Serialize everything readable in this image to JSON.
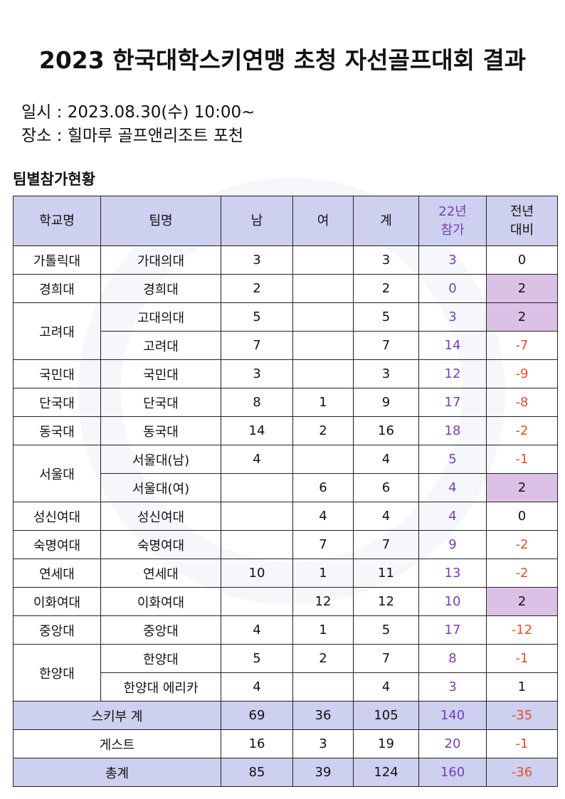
{
  "header": {
    "title": "2023 한국대학스키연맹 초청 자선골프대회 결과",
    "date": "일시 : 2023.08.30(수) 10:00~",
    "place": "장소 : 힐마루 골프앤리조트 포천"
  },
  "section": "팀별참가현황",
  "table": {
    "columns": [
      [
        "학교명"
      ],
      [
        "팀명"
      ],
      [
        "남"
      ],
      [
        "여"
      ],
      [
        "계"
      ],
      [
        "22년",
        "참가"
      ],
      [
        "전년",
        "대비"
      ]
    ],
    "schools": [
      {
        "name": "가톨릭대",
        "teams": [
          {
            "name": "가대의대",
            "male": 3,
            "female": null,
            "total": 3,
            "prev": 3,
            "diff": 0,
            "highlight": false
          }
        ]
      },
      {
        "name": "경희대",
        "teams": [
          {
            "name": "경희대",
            "male": 2,
            "female": null,
            "total": 2,
            "prev": 0,
            "diff": 2,
            "highlight": true
          }
        ]
      },
      {
        "name": "고려대",
        "teams": [
          {
            "name": "고대의대",
            "male": 5,
            "female": null,
            "total": 5,
            "prev": 3,
            "diff": 2,
            "highlight": true
          },
          {
            "name": "고려대",
            "male": 7,
            "female": null,
            "total": 7,
            "prev": 14,
            "diff": -7,
            "highlight": false
          }
        ]
      },
      {
        "name": "국민대",
        "teams": [
          {
            "name": "국민대",
            "male": 3,
            "female": null,
            "total": 3,
            "prev": 12,
            "diff": -9,
            "highlight": false
          }
        ]
      },
      {
        "name": "단국대",
        "teams": [
          {
            "name": "단국대",
            "male": 8,
            "female": 1,
            "total": 9,
            "prev": 17,
            "diff": -8,
            "highlight": false
          }
        ]
      },
      {
        "name": "동국대",
        "teams": [
          {
            "name": "동국대",
            "male": 14,
            "female": 2,
            "total": 16,
            "prev": 18,
            "diff": -2,
            "highlight": false
          }
        ]
      },
      {
        "name": "서울대",
        "teams": [
          {
            "name": "서울대(남)",
            "male": 4,
            "female": null,
            "total": 4,
            "prev": 5,
            "diff": -1,
            "highlight": false
          },
          {
            "name": "서울대(여)",
            "male": null,
            "female": 6,
            "total": 6,
            "prev": 4,
            "diff": 2,
            "highlight": true
          }
        ]
      },
      {
        "name": "성신여대",
        "teams": [
          {
            "name": "성신여대",
            "male": null,
            "female": 4,
            "total": 4,
            "prev": 4,
            "diff": 0,
            "highlight": false
          }
        ]
      },
      {
        "name": "숙명여대",
        "teams": [
          {
            "name": "숙명여대",
            "male": null,
            "female": 7,
            "total": 7,
            "prev": 9,
            "diff": -2,
            "highlight": false
          }
        ]
      },
      {
        "name": "연세대",
        "teams": [
          {
            "name": "연세대",
            "male": 10,
            "female": 1,
            "total": 11,
            "prev": 13,
            "diff": -2,
            "highlight": false
          }
        ]
      },
      {
        "name": "이화여대",
        "teams": [
          {
            "name": "이화여대",
            "male": null,
            "female": 12,
            "total": 12,
            "prev": 10,
            "diff": 2,
            "highlight": true
          }
        ]
      },
      {
        "name": "중앙대",
        "teams": [
          {
            "name": "중앙대",
            "male": 4,
            "female": 1,
            "total": 5,
            "prev": 17,
            "diff": -12,
            "highlight": false
          }
        ]
      },
      {
        "name": "한양대",
        "teams": [
          {
            "name": "한양대",
            "male": 5,
            "female": 2,
            "total": 7,
            "prev": 8,
            "diff": -1,
            "highlight": false
          },
          {
            "name": "한양대 에리카",
            "male": 4,
            "female": null,
            "total": 4,
            "prev": 3,
            "diff": 1,
            "highlight": false
          }
        ]
      }
    ],
    "summary": [
      {
        "label": "스키부 계",
        "male": 69,
        "female": 36,
        "total": 105,
        "prev": 140,
        "diff": -35,
        "shaded": true
      },
      {
        "label": "게스트",
        "male": 16,
        "female": 3,
        "total": 19,
        "prev": 20,
        "diff": -1,
        "shaded": false
      },
      {
        "label": "총계",
        "male": 85,
        "female": 39,
        "total": 124,
        "prev": 160,
        "diff": -36,
        "shaded": true
      }
    ]
  }
}
